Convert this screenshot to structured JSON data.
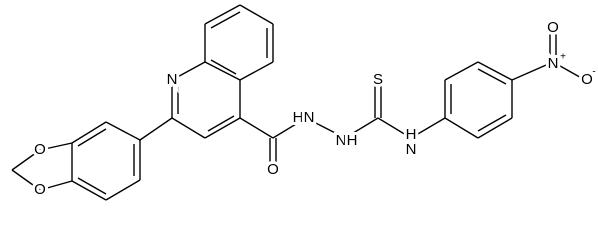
{
  "labels": [
    "N",
    "O",
    "O",
    "O",
    "H",
    "N",
    "N",
    "H",
    "S",
    "N",
    "H",
    "N",
    "+",
    "O",
    "-",
    "O"
  ]
}
